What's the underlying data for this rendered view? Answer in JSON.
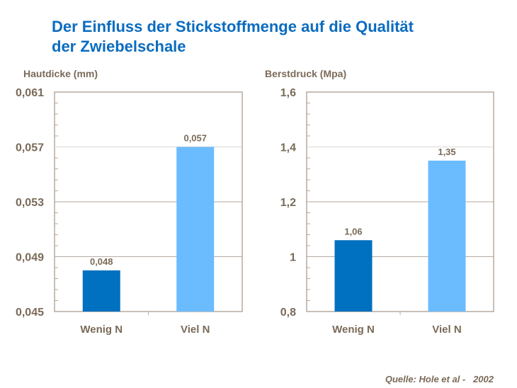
{
  "title_line1": "Der Einfluss der Stickstoffmenge auf die Qualität",
  "title_line2": "der Zwiebelschale",
  "source": "Quelle: Hole et al -   2002",
  "colors": {
    "wenig": "#0070c0",
    "viel": "#6bbcff",
    "text": "#7a6a58",
    "title": "#0a6cc0",
    "axis": "#b5aaa0"
  },
  "chart_data": [
    {
      "type": "bar",
      "title": "Hautdicke (mm)",
      "categories": [
        "Wenig N",
        "Viel N"
      ],
      "values": [
        0.048,
        0.057
      ],
      "value_labels": [
        "0,048",
        "0,057"
      ],
      "ylim": [
        0.045,
        0.061
      ],
      "yticks": [
        0.045,
        0.049,
        0.053,
        0.057,
        0.061
      ],
      "ytick_labels": [
        "0,045",
        "0,049",
        "0,053",
        "0,057",
        "0,061"
      ],
      "grid": true
    },
    {
      "type": "bar",
      "title": "Berstdruck (Mpa)",
      "categories": [
        "Wenig N",
        "Viel N"
      ],
      "values": [
        1.06,
        1.35
      ],
      "value_labels": [
        "1,06",
        "1,35"
      ],
      "ylim": [
        0.8,
        1.6
      ],
      "yticks": [
        0.8,
        1.0,
        1.2,
        1.4,
        1.6
      ],
      "ytick_labels": [
        "0,8",
        "1",
        "1,2",
        "1,4",
        "1,6"
      ],
      "grid": true
    }
  ]
}
